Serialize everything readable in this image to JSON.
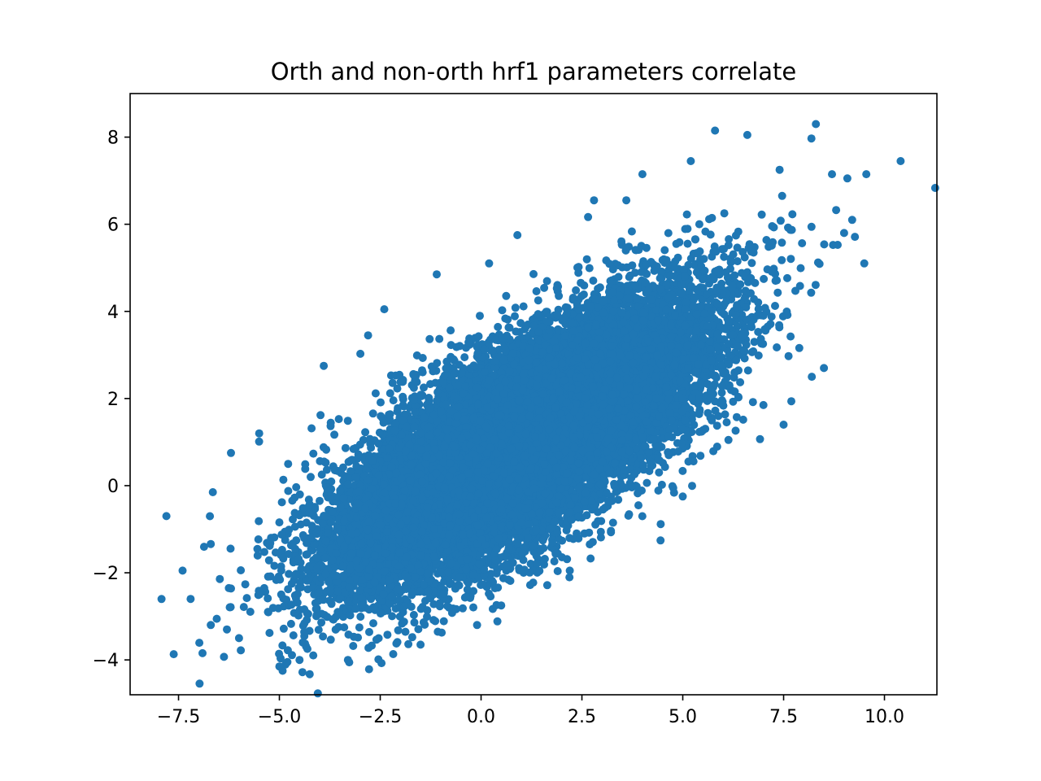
{
  "chart_data": {
    "type": "scatter",
    "title": "Orth and non-orth hrf1 parameters correlate",
    "xlabel": "",
    "ylabel": "",
    "xlim": [
      -8.7,
      11.3
    ],
    "ylim": [
      -4.8,
      9.0
    ],
    "xticks": [
      -7.5,
      -5.0,
      -2.5,
      0.0,
      2.5,
      5.0,
      7.5,
      10.0
    ],
    "xtick_labels": [
      "−7.5",
      "−5.0",
      "−2.5",
      "0.0",
      "2.5",
      "5.0",
      "7.5",
      "10.0"
    ],
    "yticks": [
      -4,
      -2,
      0,
      2,
      4,
      6,
      8
    ],
    "ytick_labels": [
      "−4",
      "−2",
      "0",
      "2",
      "4",
      "6",
      "8"
    ],
    "grid": false,
    "legend": "none",
    "series": [
      {
        "color": "#1f77b4",
        "marker_radius": 5,
        "distribution": {
          "kind": "bivariate-normal",
          "count": 20000,
          "mean_x": 1.0,
          "mean_y": 1.0,
          "std_x": 2.2,
          "std_y": 1.55,
          "correlation": 0.73
        },
        "outliers": [
          {
            "x": -7.8,
            "y": -0.7
          },
          {
            "x": -7.4,
            "y": -1.95
          },
          {
            "x": -7.2,
            "y": -2.6
          },
          {
            "x": -6.7,
            "y": -3.2
          },
          {
            "x": -6.65,
            "y": -0.15
          },
          {
            "x": -6.2,
            "y": 0.75
          },
          {
            "x": -6.3,
            "y": -3.3
          },
          {
            "x": -6.0,
            "y": -3.5
          },
          {
            "x": -5.5,
            "y": 1.2
          },
          {
            "x": -5.0,
            "y": -4.15
          },
          {
            "x": -4.8,
            "y": -4.05
          },
          {
            "x": -4.5,
            "y": -4.0
          },
          {
            "x": -3.9,
            "y": 2.75
          },
          {
            "x": -3.3,
            "y": -4.0
          },
          {
            "x": -2.8,
            "y": 3.45
          },
          {
            "x": -2.4,
            "y": 4.05
          },
          {
            "x": -1.5,
            "y": -3.65
          },
          {
            "x": -1.1,
            "y": 4.85
          },
          {
            "x": -0.1,
            "y": -3.2
          },
          {
            "x": 0.2,
            "y": 5.1
          },
          {
            "x": 0.5,
            "y": -2.75
          },
          {
            "x": 0.9,
            "y": 5.75
          },
          {
            "x": 2.2,
            "y": -1.95
          },
          {
            "x": 2.8,
            "y": 6.55
          },
          {
            "x": 3.6,
            "y": 6.55
          },
          {
            "x": 3.9,
            "y": -0.45
          },
          {
            "x": 4.0,
            "y": 7.15
          },
          {
            "x": 5.0,
            "y": -0.25
          },
          {
            "x": 5.2,
            "y": 7.45
          },
          {
            "x": 5.8,
            "y": 8.15
          },
          {
            "x": 6.6,
            "y": 8.05
          },
          {
            "x": 7.0,
            "y": 1.85
          },
          {
            "x": 7.4,
            "y": 7.25
          },
          {
            "x": 7.5,
            "y": 1.4
          },
          {
            "x": 8.2,
            "y": 2.5
          },
          {
            "x": 8.3,
            "y": 8.3
          },
          {
            "x": 8.5,
            "y": 2.7
          },
          {
            "x": 8.7,
            "y": 7.15
          },
          {
            "x": 9.0,
            "y": 5.8
          },
          {
            "x": 9.2,
            "y": 6.1
          },
          {
            "x": 9.5,
            "y": 5.1
          },
          {
            "x": 9.55,
            "y": 7.15
          },
          {
            "x": 10.4,
            "y": 7.45
          }
        ]
      }
    ]
  }
}
